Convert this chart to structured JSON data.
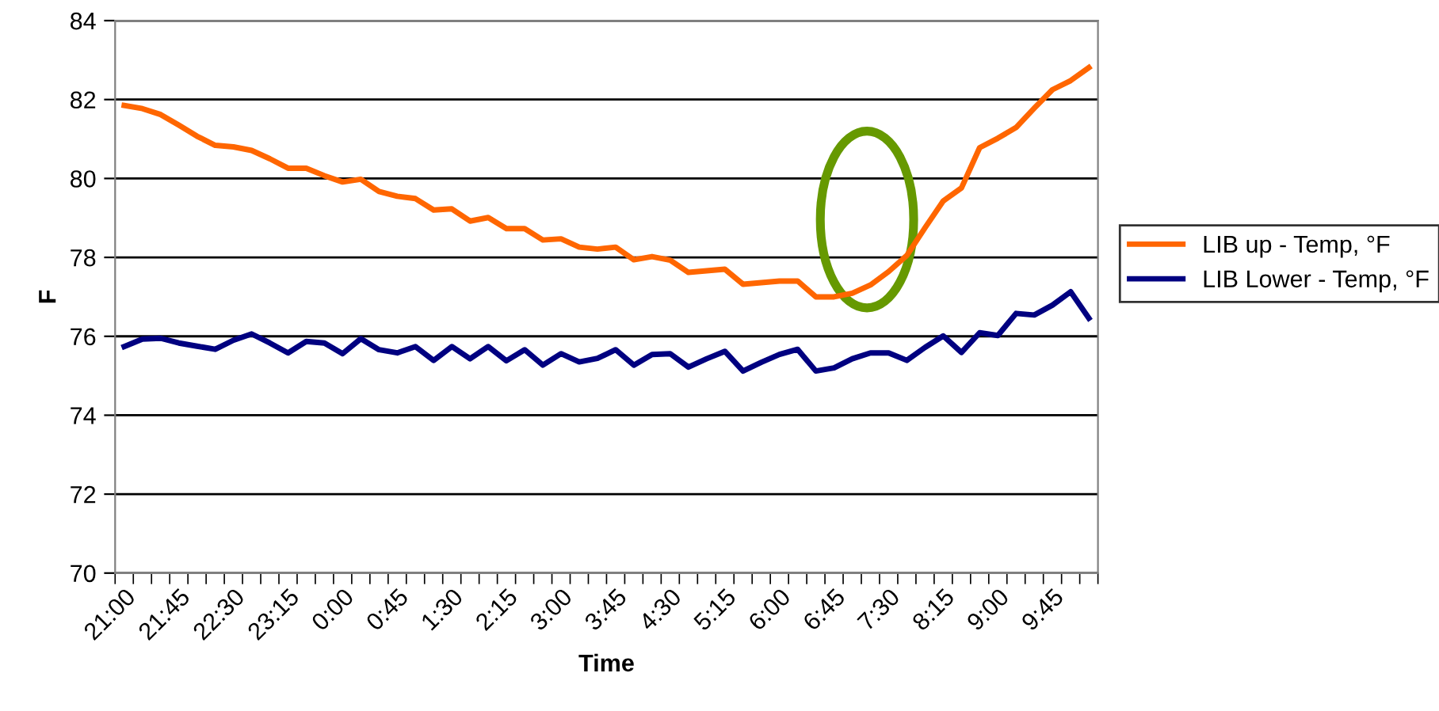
{
  "chart_data": {
    "type": "line",
    "xlabel": "Time",
    "ylabel": "F",
    "categories": [
      "21:00",
      null,
      null,
      "21:45",
      null,
      null,
      "22:30",
      null,
      null,
      "23:15",
      null,
      null,
      "0:00",
      null,
      null,
      "0:45",
      null,
      null,
      "1:30",
      null,
      null,
      "2:15",
      null,
      null,
      "3:00",
      null,
      null,
      "3:45",
      null,
      null,
      "4:30",
      null,
      null,
      "5:15",
      null,
      null,
      "6:00",
      null,
      null,
      "6:45",
      null,
      null,
      "7:30",
      null,
      null,
      "8:15",
      null,
      null,
      "9:00",
      null,
      null,
      "9:45",
      null,
      null
    ],
    "series": [
      {
        "name": "LIB up - Temp, °F",
        "color": "#ff6600",
        "values": [
          81.85,
          81.77,
          81.62,
          81.35,
          81.07,
          80.84,
          80.8,
          80.71,
          80.5,
          80.26,
          80.26,
          80.07,
          79.91,
          79.98,
          79.67,
          79.55,
          79.49,
          79.2,
          79.23,
          78.92,
          79.01,
          78.73,
          78.73,
          78.44,
          78.47,
          78.26,
          78.21,
          78.26,
          77.94,
          78.02,
          77.93,
          77.62,
          77.66,
          77.7,
          77.32,
          77.36,
          77.4,
          77.4,
          77.0,
          77.0,
          77.09,
          77.3,
          77.64,
          78.05,
          78.75,
          79.43,
          79.76,
          80.78,
          81.02,
          81.29,
          81.78,
          82.25,
          82.48,
          82.81
        ]
      },
      {
        "name": "LIB Lower - Temp, °F",
        "color": "#000080",
        "values": [
          75.74,
          75.93,
          75.95,
          75.83,
          75.75,
          75.67,
          75.9,
          76.06,
          75.83,
          75.58,
          75.87,
          75.83,
          75.56,
          75.94,
          75.66,
          75.58,
          75.74,
          75.39,
          75.74,
          75.43,
          75.74,
          75.38,
          75.66,
          75.27,
          75.56,
          75.35,
          75.44,
          75.66,
          75.27,
          75.54,
          75.56,
          75.22,
          75.43,
          75.62,
          75.12,
          75.34,
          75.54,
          75.67,
          75.12,
          75.2,
          75.43,
          75.58,
          75.58,
          75.39,
          75.72,
          76.01,
          75.59,
          76.09,
          76.02,
          76.58,
          76.54,
          76.79,
          77.13,
          76.46
        ]
      }
    ],
    "ylim": [
      70,
      84
    ],
    "yticks": [
      70,
      72,
      74,
      76,
      78,
      80,
      82,
      84
    ],
    "grid": "y",
    "legend": "right",
    "marker": "none",
    "line_style": "solid"
  }
}
